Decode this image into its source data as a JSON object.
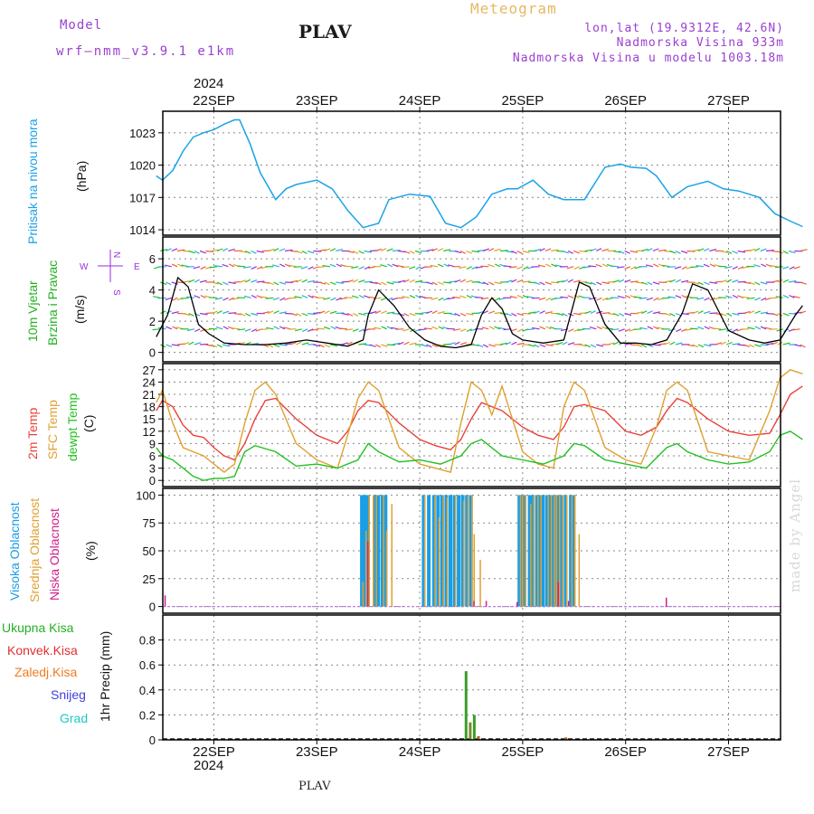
{
  "header": {
    "model_label": "Model",
    "model_name": "wrf–nmm_v3.9.1  e1km",
    "title": "PLAV",
    "meteogram": "Meteogram",
    "lonlat": "lon,lat (19.9312E, 42.6N)",
    "elevation": "Nadmorska Visina 933m",
    "model_elevation": "Nadmorska Visina u modelu 1003.18m",
    "top_year": "2024",
    "bottom_year": "2024",
    "footer_station": "PLAV",
    "watermark": "made by Angel"
  },
  "colors": {
    "pressure": "#1aa3e8",
    "temp2m": "#e8423a",
    "sfc": "#e0a030",
    "dewpt": "#22c020",
    "high_cloud": "#1a9ee6",
    "mid_cloud": "#e0a030",
    "low_cloud": "#d0208a",
    "wind_purple": "#9a2de0",
    "wind_speed": "#000000",
    "precip_total": "#3a9e2a",
    "precip_conv": "#e03030",
    "precip_frozen": "#f07a20",
    "snow": "#4040e0",
    "hail": "#20c8c8"
  },
  "chart_data": [
    {
      "type": "line",
      "panel": "pressure",
      "label": "Pritisak na nivou mora",
      "unit": "(hPa)",
      "xdates": [
        "22SEP",
        "23SEP",
        "24SEP",
        "25SEP",
        "26SEP",
        "27SEP"
      ],
      "ylim": [
        1013.5,
        1025
      ],
      "yticks": [
        "1014",
        "1017",
        "1020",
        "1023"
      ],
      "x": [
        -0.56,
        -0.5,
        -0.4,
        -0.3,
        -0.2,
        -0.1,
        0.0,
        0.1,
        0.2,
        0.25,
        0.35,
        0.45,
        0.6,
        0.7,
        0.8,
        1.0,
        1.15,
        1.3,
        1.45,
        1.6,
        1.7,
        1.9,
        2.1,
        2.25,
        2.4,
        2.55,
        2.7,
        2.85,
        2.95,
        3.1,
        3.25,
        3.4,
        3.6,
        3.8,
        3.95,
        4.05,
        4.2,
        4.3,
        4.45,
        4.6,
        4.8,
        4.95,
        5.1,
        5.3,
        5.45,
        5.6,
        5.72
      ],
      "values": [
        1019.0,
        1018.6,
        1019.5,
        1021.3,
        1022.6,
        1023.0,
        1023.3,
        1023.8,
        1024.2,
        1024.2,
        1022.0,
        1019.3,
        1016.8,
        1017.8,
        1018.2,
        1018.6,
        1017.8,
        1015.8,
        1014.2,
        1014.6,
        1016.8,
        1017.3,
        1017.1,
        1014.6,
        1014.2,
        1015.2,
        1017.3,
        1017.8,
        1017.8,
        1018.6,
        1017.3,
        1016.8,
        1016.8,
        1019.8,
        1020.1,
        1019.8,
        1019.7,
        1019.0,
        1017.0,
        1018.0,
        1018.5,
        1017.8,
        1017.6,
        1017.0,
        1015.5,
        1014.8,
        1014.3
      ]
    },
    {
      "type": "line",
      "panel": "wind",
      "label_speed": "10m Vjetar",
      "label_dir": "Brzina i Pravac",
      "unit": "(m/s)",
      "compass": {
        "n": "N",
        "s": "S",
        "w": "W",
        "e": "E"
      },
      "ylim": [
        -0.6,
        7.4
      ],
      "yticks": [
        "0",
        "2",
        "4",
        "6"
      ],
      "x": [
        -0.56,
        -0.45,
        -0.35,
        -0.25,
        -0.15,
        -0.05,
        0.1,
        0.3,
        0.5,
        0.7,
        0.9,
        1.1,
        1.3,
        1.45,
        1.5,
        1.6,
        1.75,
        1.9,
        2.05,
        2.2,
        2.35,
        2.5,
        2.6,
        2.7,
        2.8,
        2.9,
        3.0,
        3.2,
        3.4,
        3.55,
        3.65,
        3.8,
        3.95,
        4.1,
        4.25,
        4.4,
        4.55,
        4.65,
        4.8,
        5.0,
        5.2,
        5.35,
        5.5,
        5.65,
        5.72
      ],
      "values": [
        1.0,
        2.4,
        4.8,
        4.2,
        1.8,
        1.2,
        0.6,
        0.5,
        0.5,
        0.6,
        0.8,
        0.6,
        0.4,
        0.8,
        2.4,
        4.0,
        3.0,
        1.6,
        0.8,
        0.4,
        0.3,
        0.5,
        2.4,
        3.5,
        2.8,
        1.2,
        0.8,
        0.6,
        0.8,
        4.5,
        4.2,
        1.8,
        0.6,
        0.6,
        0.5,
        0.8,
        2.5,
        4.4,
        4.0,
        1.4,
        0.8,
        0.6,
        0.8,
        2.4,
        3.0
      ]
    },
    {
      "type": "line",
      "panel": "temperature",
      "labels": [
        "2m Temp",
        "SFC Temp",
        "dewpt Temp"
      ],
      "unit": "(C)",
      "ylim": [
        -1.5,
        28.5
      ],
      "yticks": [
        "0",
        "3",
        "6",
        "9",
        "12",
        "15",
        "18",
        "21",
        "24",
        "27"
      ],
      "series": [
        {
          "name": "2m Temp",
          "x": [
            -0.56,
            -0.5,
            -0.4,
            -0.3,
            -0.2,
            -0.1,
            0.0,
            0.1,
            0.2,
            0.3,
            0.4,
            0.5,
            0.6,
            0.8,
            1.0,
            1.2,
            1.3,
            1.4,
            1.5,
            1.6,
            1.8,
            2.0,
            2.15,
            2.3,
            2.4,
            2.5,
            2.6,
            2.8,
            3.0,
            3.15,
            3.3,
            3.4,
            3.5,
            3.6,
            3.8,
            4.0,
            4.15,
            4.3,
            4.4,
            4.5,
            4.6,
            4.8,
            5.0,
            5.2,
            5.4,
            5.5,
            5.6,
            5.72
          ],
          "values": [
            17,
            19.5,
            18,
            13.5,
            11,
            10.5,
            8,
            6,
            5,
            9,
            15,
            19.5,
            20,
            15,
            11,
            9,
            12,
            17,
            19.5,
            19,
            14,
            10,
            8.5,
            7.5,
            10,
            15,
            19,
            17,
            13,
            11,
            10,
            13,
            18,
            18.5,
            17,
            12,
            11,
            13,
            17,
            20,
            19,
            15,
            12,
            11,
            11.5,
            16,
            21,
            23
          ]
        },
        {
          "name": "SFC Temp",
          "x": [
            -0.56,
            -0.5,
            -0.4,
            -0.3,
            -0.2,
            -0.1,
            0.0,
            0.1,
            0.2,
            0.3,
            0.4,
            0.5,
            0.6,
            0.8,
            1.0,
            1.2,
            1.3,
            1.4,
            1.5,
            1.6,
            1.8,
            2.0,
            2.15,
            2.3,
            2.4,
            2.5,
            2.6,
            2.7,
            2.8,
            3.0,
            3.15,
            3.3,
            3.4,
            3.5,
            3.6,
            3.8,
            4.0,
            4.15,
            4.3,
            4.4,
            4.5,
            4.6,
            4.8,
            5.0,
            5.2,
            5.4,
            5.5,
            5.6,
            5.72
          ],
          "values": [
            19,
            22,
            14,
            8,
            7,
            6,
            4,
            2,
            4,
            14,
            22,
            24,
            21,
            9,
            5,
            3,
            11,
            20,
            24,
            22,
            8,
            4,
            3,
            2,
            14,
            24,
            22,
            16,
            23,
            7,
            4,
            3,
            18,
            24,
            22,
            8,
            5,
            4,
            13,
            22,
            24,
            22,
            7,
            6,
            5,
            17,
            25,
            27,
            26
          ]
        },
        {
          "name": "dewpt Temp",
          "x": [
            -0.56,
            -0.5,
            -0.4,
            -0.3,
            -0.2,
            -0.1,
            0.0,
            0.1,
            0.2,
            0.3,
            0.4,
            0.6,
            0.8,
            1.0,
            1.2,
            1.4,
            1.5,
            1.6,
            1.8,
            2.0,
            2.2,
            2.4,
            2.5,
            2.6,
            2.8,
            3.0,
            3.2,
            3.4,
            3.5,
            3.6,
            3.8,
            4.0,
            4.2,
            4.4,
            4.5,
            4.6,
            4.8,
            5.0,
            5.2,
            5.4,
            5.5,
            5.6,
            5.72
          ],
          "values": [
            8,
            6,
            5,
            3,
            1,
            0,
            0.5,
            0.5,
            1,
            7,
            8.5,
            7,
            3.5,
            4,
            3,
            5,
            9,
            7,
            4.5,
            5,
            4,
            6,
            9,
            10,
            6,
            5,
            4,
            6,
            9,
            8.5,
            5,
            4,
            3,
            8,
            9,
            7,
            5,
            4,
            4.5,
            7,
            11,
            12,
            10
          ]
        }
      ]
    },
    {
      "type": "bar",
      "panel": "cloud",
      "labels": [
        "Visoka Oblacnost",
        "Srednja Oblacnost",
        "Niska Oblacnost"
      ],
      "unit": "(%)",
      "ylim": [
        -6,
        106
      ],
      "yticks": [
        "0",
        "25",
        "50",
        "75",
        "100"
      ],
      "x": [
        -0.52,
        1.42,
        1.45,
        1.48,
        1.52,
        1.55,
        1.58,
        1.62,
        1.65,
        1.7,
        2.02,
        2.07,
        2.12,
        2.16,
        2.2,
        2.24,
        2.28,
        2.32,
        2.36,
        2.4,
        2.44,
        2.48,
        2.5,
        2.53,
        2.56,
        2.6,
        2.62,
        2.9,
        2.95,
        2.97,
        3.0,
        3.05,
        3.08,
        3.12,
        3.15,
        3.18,
        3.22,
        3.25,
        3.28,
        3.3,
        3.33,
        3.36,
        3.4,
        3.42,
        3.45,
        3.48,
        3.52,
        3.56,
        3.62,
        4.35
      ],
      "series": [
        {
          "name": "Visoka Oblacnost",
          "values": [
            0,
            100,
            100,
            100,
            0,
            100,
            100,
            100,
            100,
            0,
            100,
            100,
            100,
            100,
            100,
            100,
            100,
            100,
            100,
            100,
            100,
            100,
            0,
            0,
            0,
            0,
            0,
            0,
            100,
            100,
            100,
            100,
            100,
            100,
            100,
            100,
            100,
            100,
            100,
            100,
            100,
            100,
            100,
            0,
            100,
            100,
            0,
            0,
            0,
            0
          ]
        },
        {
          "name": "Srednja Oblacnost",
          "values": [
            0,
            22,
            68,
            100,
            100,
            100,
            0,
            100,
            68,
            92,
            100,
            0,
            100,
            80,
            100,
            98,
            0,
            100,
            0,
            95,
            100,
            100,
            65,
            0,
            42,
            0,
            0,
            0,
            100,
            100,
            100,
            92,
            100,
            100,
            100,
            0,
            100,
            100,
            100,
            100,
            100,
            100,
            100,
            0,
            100,
            100,
            65,
            0,
            0,
            0
          ]
        },
        {
          "name": "Niska Oblacnost",
          "values": [
            10,
            0,
            58,
            0,
            0,
            0,
            0,
            0,
            0,
            0,
            0,
            0,
            0,
            0,
            0,
            0,
            0,
            0,
            0,
            0,
            0,
            5,
            0,
            0,
            0,
            5,
            0,
            4,
            0,
            0,
            0,
            0,
            0,
            0,
            0,
            0,
            0,
            0,
            0,
            22,
            0,
            0,
            5,
            0,
            0,
            0,
            0,
            0,
            0,
            8
          ]
        }
      ]
    },
    {
      "type": "bar",
      "panel": "precip",
      "labels": [
        "Ukupna Kisa",
        "Konvek.Kisa",
        "Zaledj.Kisa",
        "Snijeg",
        "Grad"
      ],
      "unit": "1hr Precip (mm)",
      "ylim": [
        0,
        1.0
      ],
      "yticks": [
        "0",
        "0.2",
        "0.4",
        "0.6",
        "0.8"
      ],
      "x": [
        2.45,
        2.49,
        2.53,
        2.57,
        3.42
      ],
      "series": [
        {
          "name": "Ukupna Kisa",
          "values": [
            0.55,
            0.14,
            0.2,
            0.03,
            0.02
          ]
        },
        {
          "name": "Konvek.Kisa",
          "values": [
            0,
            0,
            0,
            0,
            0
          ]
        },
        {
          "name": "Zaledj.Kisa",
          "values": [
            0,
            0,
            0,
            0,
            0
          ]
        },
        {
          "name": "Snijeg",
          "values": [
            0,
            0,
            0,
            0,
            0
          ]
        },
        {
          "name": "Grad",
          "values": [
            0,
            0,
            0,
            0,
            0
          ]
        }
      ]
    }
  ]
}
